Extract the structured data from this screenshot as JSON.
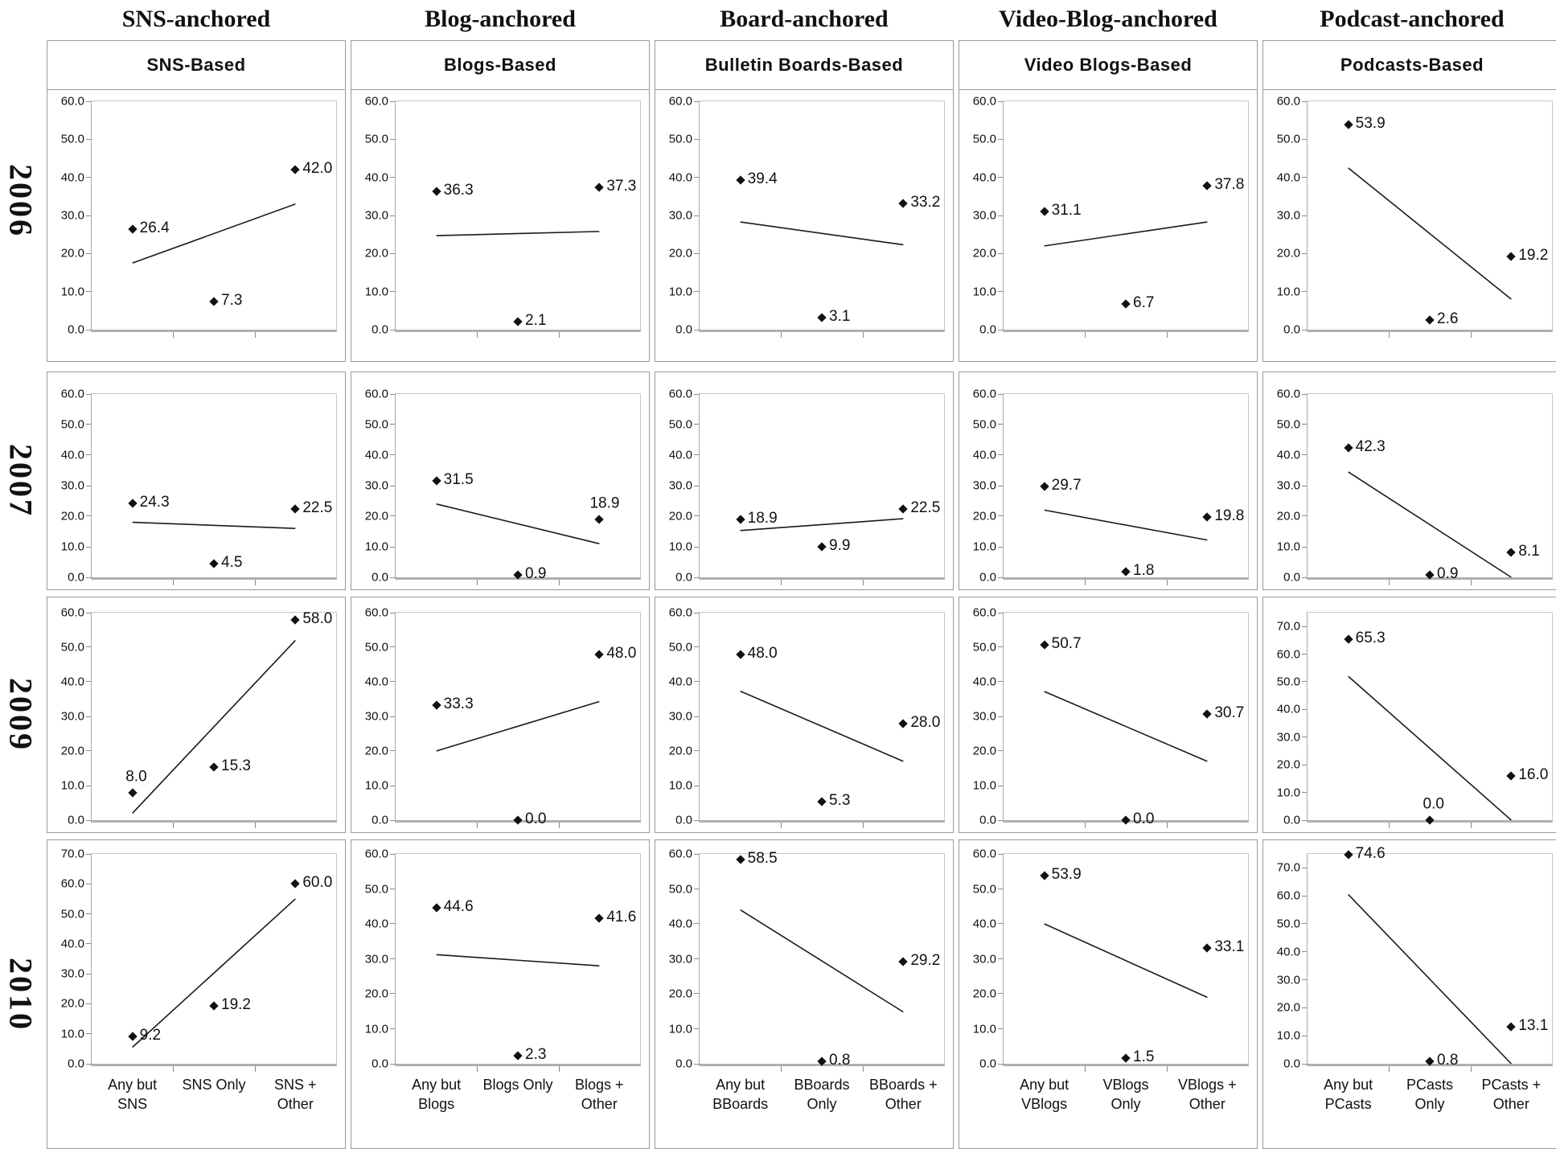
{
  "chart_data": {
    "type": "scatter",
    "grid": "5 columns (platform anchors) x 4 rows (years), each cell a 3-point scatter with linear trend line",
    "x_positions_pct": [
      16.67,
      50,
      83.33
    ],
    "ytick_step": 10,
    "columns": [
      {
        "header": "SNS-anchored",
        "title": "SNS-Based",
        "categories": [
          "Any but SNS",
          "SNS Only",
          "SNS + Other"
        ]
      },
      {
        "header": "Blog-anchored",
        "title": "Blogs-Based",
        "categories": [
          "Any but Blogs",
          "Blogs Only",
          "Blogs + Other"
        ]
      },
      {
        "header": "Board-anchored",
        "title": "Bulletin Boards-Based",
        "categories": [
          "Any but BBoards",
          "BBoards Only",
          "BBoards + Other"
        ]
      },
      {
        "header": "Video-Blog-anchored",
        "title": "Video Blogs-Based",
        "categories": [
          "Any but VBlogs",
          "VBlogs Only",
          "VBlogs + Other"
        ]
      },
      {
        "header": "Podcast-anchored",
        "title": "Podcasts-Based",
        "categories": [
          "Any but PCasts",
          "PCasts Only",
          "PCasts + Other"
        ]
      }
    ],
    "rows": [
      {
        "year": "2006",
        "charts": [
          {
            "values": [
              26.4,
              7.3,
              42.0
            ],
            "trend": [
              17.5,
              33.0
            ],
            "ymax": 60,
            "ytick_top": 60
          },
          {
            "values": [
              36.3,
              2.1,
              37.3
            ],
            "trend": [
              24.7,
              25.8
            ],
            "ymax": 60,
            "ytick_top": 60
          },
          {
            "values": [
              39.4,
              3.1,
              33.2
            ],
            "trend": [
              28.3,
              22.3
            ],
            "ymax": 60,
            "ytick_top": 60
          },
          {
            "values": [
              31.1,
              6.7,
              37.8
            ],
            "trend": [
              22.0,
              28.3
            ],
            "ymax": 60,
            "ytick_top": 60
          },
          {
            "values": [
              53.9,
              2.6,
              19.2
            ],
            "trend": [
              42.5,
              8.0
            ],
            "ymax": 60,
            "ytick_top": 60
          }
        ]
      },
      {
        "year": "2007",
        "charts": [
          {
            "values": [
              24.3,
              4.5,
              22.5
            ],
            "trend": [
              18.0,
              16.0
            ],
            "ymax": 60,
            "ytick_top": 60
          },
          {
            "values": [
              31.5,
              0.9,
              18.9
            ],
            "trend": [
              24.0,
              11.0
            ],
            "ymax": 60,
            "ytick_top": 60,
            "label_pos": [
              "right",
              "right",
              "above"
            ]
          },
          {
            "values": [
              18.9,
              9.9,
              22.5
            ],
            "trend": [
              15.3,
              19.2
            ],
            "ymax": 60,
            "ytick_top": 60
          },
          {
            "values": [
              29.7,
              1.8,
              19.8
            ],
            "trend": [
              22.0,
              12.2
            ],
            "ymax": 60,
            "ytick_top": 60
          },
          {
            "values": [
              42.3,
              0.9,
              8.1
            ],
            "trend": [
              34.5,
              0.0
            ],
            "ymax": 60,
            "ytick_top": 60
          }
        ]
      },
      {
        "year": "2009",
        "charts": [
          {
            "values": [
              8.0,
              15.3,
              58.0
            ],
            "trend": [
              2.0,
              52.0
            ],
            "ymax": 60,
            "ytick_top": 60,
            "label_pos": [
              "above",
              "right",
              "right"
            ]
          },
          {
            "values": [
              33.3,
              0.0,
              48.0
            ],
            "trend": [
              20.0,
              34.3
            ],
            "ymax": 60,
            "ytick_top": 60
          },
          {
            "values": [
              48.0,
              5.3,
              28.0
            ],
            "trend": [
              37.3,
              17.0
            ],
            "ymax": 60,
            "ytick_top": 60
          },
          {
            "values": [
              50.7,
              0.0,
              30.7
            ],
            "trend": [
              37.2,
              17.0
            ],
            "ymax": 60,
            "ytick_top": 60
          },
          {
            "values": [
              65.3,
              0.0,
              16.0
            ],
            "trend": [
              52.0,
              0.0
            ],
            "ymax": 75,
            "ytick_top": 70,
            "label_pos": [
              "right",
              "above",
              "right"
            ]
          }
        ]
      },
      {
        "year": "2010",
        "charts": [
          {
            "values": [
              9.2,
              19.2,
              60.0
            ],
            "trend": [
              5.5,
              55.0
            ],
            "ymax": 70,
            "ytick_top": 70
          },
          {
            "values": [
              44.6,
              2.3,
              41.6
            ],
            "trend": [
              31.2,
              28.0
            ],
            "ymax": 60,
            "ytick_top": 60
          },
          {
            "values": [
              58.5,
              0.8,
              29.2
            ],
            "trend": [
              44.0,
              14.8
            ],
            "ymax": 60,
            "ytick_top": 60
          },
          {
            "values": [
              53.9,
              1.5,
              33.1
            ],
            "trend": [
              40.0,
              19.0
            ],
            "ymax": 60,
            "ytick_top": 60
          },
          {
            "values": [
              74.6,
              0.8,
              13.1
            ],
            "trend": [
              60.5,
              0.0
            ],
            "ymax": 75,
            "ytick_top": 70
          }
        ]
      }
    ],
    "trend_note": "trend = [value at left category position, value at right category position]",
    "colors": {
      "marker": "#111111",
      "trend_line": "#1a1a1a",
      "axis": "#9a9a9a",
      "text": "#111111",
      "background": "#ffffff"
    }
  }
}
